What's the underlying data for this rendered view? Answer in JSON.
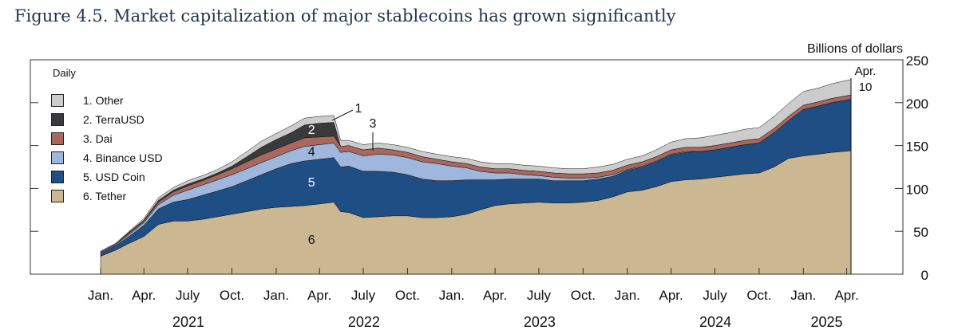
{
  "figure": {
    "title": "Figure 4.5. Market capitalization of major stablecoins has grown significantly"
  },
  "chart_data": {
    "type": "area",
    "stacked": true,
    "frequency_label": "Daily",
    "unit_label": "Billions of dollars",
    "ylim": [
      0,
      250
    ],
    "y_ticks": [
      0,
      50,
      100,
      150,
      200,
      250
    ],
    "x_ticks": [
      {
        "date": "2021-01-01",
        "label": "Jan."
      },
      {
        "date": "2021-04-01",
        "label": "Apr."
      },
      {
        "date": "2021-07-01",
        "label": "July"
      },
      {
        "date": "2021-10-01",
        "label": "Oct."
      },
      {
        "date": "2022-01-01",
        "label": "Jan."
      },
      {
        "date": "2022-04-01",
        "label": "Apr."
      },
      {
        "date": "2022-07-01",
        "label": "July"
      },
      {
        "date": "2022-10-01",
        "label": "Oct."
      },
      {
        "date": "2023-01-01",
        "label": "Jan."
      },
      {
        "date": "2023-04-01",
        "label": "Apr."
      },
      {
        "date": "2023-07-01",
        "label": "July"
      },
      {
        "date": "2023-10-01",
        "label": "Oct."
      },
      {
        "date": "2024-01-01",
        "label": "Jan."
      },
      {
        "date": "2024-04-01",
        "label": "Apr."
      },
      {
        "date": "2024-07-01",
        "label": "July"
      },
      {
        "date": "2024-10-01",
        "label": "Oct."
      },
      {
        "date": "2025-01-01",
        "label": "Jan."
      },
      {
        "date": "2025-04-01",
        "label": "Apr."
      }
    ],
    "year_labels": [
      "2021",
      "2022",
      "2023",
      "2024",
      "2025"
    ],
    "end_annotation": {
      "date": "2025-04-10",
      "line1": "Apr.",
      "line2": "10"
    },
    "legend": [
      {
        "key": "other",
        "label": "1. Other",
        "color": "#cccccc"
      },
      {
        "key": "terra",
        "label": "2. TerraUSD",
        "color": "#3a3a3c"
      },
      {
        "key": "dai",
        "label": "3. Dai",
        "color": "#a8685e"
      },
      {
        "key": "busd",
        "label": "4. Binance USD",
        "color": "#9fb6dd"
      },
      {
        "key": "usdc",
        "label": "5. USD Coin",
        "color": "#1f4e85"
      },
      {
        "key": "tether",
        "label": "6. Tether",
        "color": "#cbb791"
      }
    ],
    "series_numbers": [
      "1",
      "2",
      "3",
      "4",
      "5",
      "6"
    ],
    "dates": [
      "2021-01-01",
      "2021-02-01",
      "2021-03-01",
      "2021-04-01",
      "2021-05-01",
      "2021-06-01",
      "2021-07-01",
      "2021-08-01",
      "2021-09-01",
      "2021-10-01",
      "2021-11-01",
      "2021-12-01",
      "2022-01-01",
      "2022-02-01",
      "2022-03-01",
      "2022-04-01",
      "2022-05-01",
      "2022-05-15",
      "2022-06-01",
      "2022-07-01",
      "2022-08-01",
      "2022-09-01",
      "2022-10-01",
      "2022-11-01",
      "2022-12-01",
      "2023-01-01",
      "2023-02-01",
      "2023-03-01",
      "2023-04-01",
      "2023-05-01",
      "2023-06-01",
      "2023-07-01",
      "2023-08-01",
      "2023-09-01",
      "2023-10-01",
      "2023-11-01",
      "2023-12-01",
      "2024-01-01",
      "2024-02-01",
      "2024-03-01",
      "2024-04-01",
      "2024-05-01",
      "2024-06-01",
      "2024-07-01",
      "2024-08-01",
      "2024-09-01",
      "2024-10-01",
      "2024-11-01",
      "2024-12-01",
      "2025-01-01",
      "2025-02-01",
      "2025-03-01",
      "2025-04-10"
    ],
    "series": [
      {
        "key": "tether",
        "values": [
          21,
          28,
          36,
          44,
          58,
          62,
          62,
          64,
          67,
          70,
          73,
          76,
          78,
          79,
          80,
          82,
          84,
          73,
          72,
          66,
          67,
          68,
          68,
          66,
          66,
          67,
          70,
          75,
          80,
          82,
          83,
          84,
          83,
          83,
          84,
          86,
          90,
          96,
          98,
          102,
          108,
          110,
          111,
          113,
          115,
          117,
          118,
          125,
          135,
          138,
          140,
          142,
          144
        ]
      },
      {
        "key": "usdc",
        "values": [
          3,
          5,
          8,
          13,
          18,
          22,
          25,
          28,
          30,
          32,
          36,
          40,
          45,
          50,
          52,
          52,
          52,
          52,
          54,
          54,
          53,
          51,
          48,
          45,
          43,
          42,
          40,
          35,
          30,
          29,
          28,
          27,
          26,
          26,
          25,
          25,
          24,
          25,
          27,
          29,
          31,
          32,
          32,
          32,
          33,
          34,
          35,
          40,
          44,
          54,
          56,
          58,
          60
        ]
      },
      {
        "key": "busd",
        "values": [
          1,
          1,
          2,
          3,
          5,
          8,
          11,
          12,
          13,
          14,
          14,
          14,
          14,
          15,
          17,
          17,
          17,
          17,
          17,
          18,
          20,
          20,
          20,
          20,
          20,
          17,
          14,
          10,
          8,
          7,
          5,
          4,
          4,
          3,
          3,
          2,
          2,
          1,
          1,
          1,
          1,
          1,
          0,
          0,
          0,
          0,
          0,
          0,
          0,
          0,
          0,
          0,
          0
        ]
      },
      {
        "key": "dai",
        "values": [
          1,
          1,
          2,
          2,
          3,
          4,
          5,
          5,
          6,
          7,
          8,
          9,
          9,
          9,
          10,
          9,
          8,
          7,
          7,
          7,
          7,
          6,
          6,
          6,
          5,
          5,
          5,
          5,
          5,
          5,
          5,
          5,
          5,
          5,
          5,
          5,
          5,
          5,
          5,
          5,
          5,
          5,
          5,
          5,
          5,
          5,
          5,
          5,
          5,
          5,
          5,
          5,
          5
        ]
      },
      {
        "key": "terra",
        "values": [
          0,
          0,
          1,
          1,
          2,
          2,
          2,
          2,
          2,
          3,
          6,
          9,
          11,
          12,
          15,
          16,
          16,
          0,
          0,
          0,
          0,
          0,
          0,
          0,
          0,
          0,
          0,
          0,
          0,
          0,
          0,
          0,
          0,
          0,
          0,
          0,
          0,
          0,
          0,
          0,
          0,
          0,
          0,
          0,
          0,
          0,
          0,
          0,
          0,
          0,
          0,
          0,
          0
        ]
      },
      {
        "key": "other",
        "values": [
          1,
          1,
          1,
          2,
          3,
          3,
          4,
          4,
          4,
          5,
          6,
          7,
          7,
          8,
          8,
          8,
          8,
          7,
          6,
          6,
          6,
          6,
          6,
          6,
          6,
          6,
          6,
          6,
          6,
          6,
          6,
          6,
          6,
          6,
          6,
          7,
          7,
          7,
          7,
          8,
          9,
          10,
          11,
          12,
          12,
          13,
          13,
          14,
          15,
          16,
          16,
          17,
          18
        ]
      }
    ],
    "grid": false,
    "legend_placement": "top-left"
  }
}
